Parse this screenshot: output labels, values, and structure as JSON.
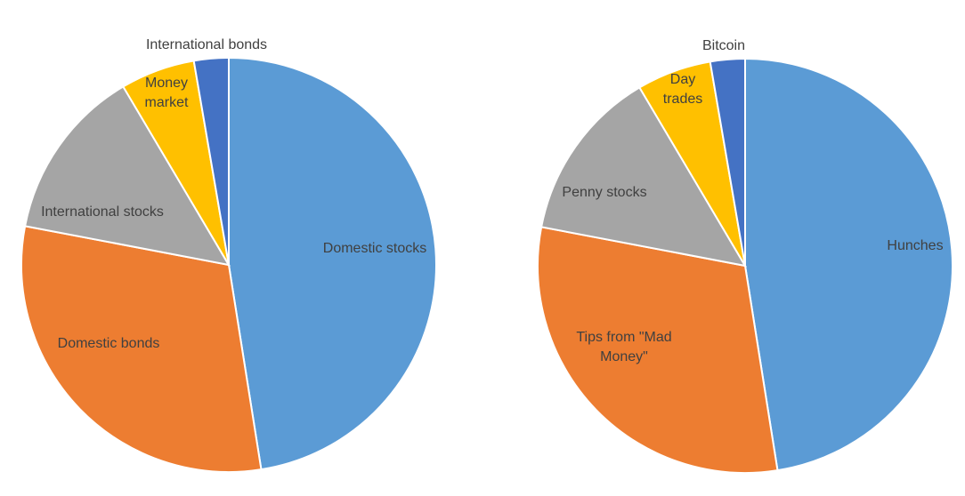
{
  "chart_data": [
    {
      "type": "pie",
      "title": "",
      "colors": [
        "#5b9bd5",
        "#ed7d31",
        "#a5a5a5",
        "#ffc000",
        "#4472c4"
      ],
      "slices": [
        {
          "name": "Domestic stocks",
          "value": 47.5,
          "label_lines": [
            "Domestic stocks"
          ]
        },
        {
          "name": "Domestic bonds",
          "value": 30.5,
          "label_lines": [
            "Domestic bonds"
          ]
        },
        {
          "name": "International stocks",
          "value": 13.5,
          "label_lines": [
            "International stocks"
          ]
        },
        {
          "name": "Money market",
          "value": 5.8,
          "label_lines": [
            "Money",
            "market"
          ]
        },
        {
          "name": "International bonds",
          "value": 2.7,
          "label_lines": [
            "International bonds"
          ]
        }
      ]
    },
    {
      "type": "pie",
      "title": "",
      "colors": [
        "#5b9bd5",
        "#ed7d31",
        "#a5a5a5",
        "#ffc000",
        "#4472c4"
      ],
      "slices": [
        {
          "name": "Hunches",
          "value": 47.5,
          "label_lines": [
            "Hunches"
          ]
        },
        {
          "name": "Tips from \"Mad Money\"",
          "value": 30.5,
          "label_lines": [
            "Tips from \"Mad",
            "Money\""
          ]
        },
        {
          "name": "Penny stocks",
          "value": 13.5,
          "label_lines": [
            "Penny stocks"
          ]
        },
        {
          "name": "Day trades",
          "value": 5.8,
          "label_lines": [
            "Day",
            "trades"
          ]
        },
        {
          "name": "Bitcoin",
          "value": 2.7,
          "label_lines": [
            "Bitcoin"
          ]
        }
      ]
    }
  ]
}
